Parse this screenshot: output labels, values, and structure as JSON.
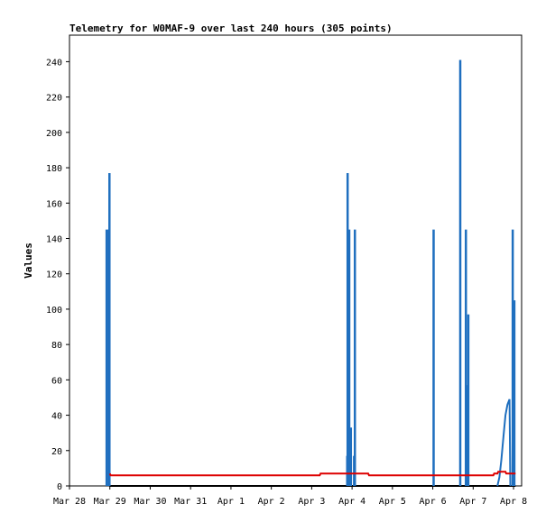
{
  "chart_data": {
    "type": "line",
    "title": "Telemetry for W0MAF-9 over last 240 hours (305 points)",
    "ylabel": "Values",
    "xlabel": "",
    "x_categories": [
      "Mar 28",
      "Mar 29",
      "Mar 30",
      "Mar 31",
      "Apr 1",
      "Apr 2",
      "Apr 3",
      "Apr 4",
      "Apr 5",
      "Apr 6",
      "Apr 7",
      "Apr 8"
    ],
    "xlim_days": [
      0,
      11.2
    ],
    "ylim": [
      0,
      255
    ],
    "yticks": [
      0,
      20,
      40,
      60,
      80,
      100,
      120,
      140,
      160,
      180,
      200,
      220,
      240
    ],
    "grid": false,
    "colors": {
      "spikes": "#1f6fbf",
      "baseline": "#dd0000",
      "zero": "#000000"
    },
    "series": [
      {
        "style": "spikes",
        "points": [
          [
            0.92,
            145
          ],
          [
            0.97,
            145
          ],
          [
            0.99,
            177
          ],
          [
            1.02,
            0
          ],
          [
            6.88,
            17
          ],
          [
            6.89,
            177
          ],
          [
            6.93,
            145
          ],
          [
            6.97,
            33
          ],
          [
            6.99,
            0
          ],
          [
            7.05,
            17
          ],
          [
            7.07,
            145
          ],
          [
            7.09,
            0
          ],
          [
            9.02,
            145
          ],
          [
            9.04,
            0
          ],
          [
            9.68,
            241
          ],
          [
            9.7,
            0
          ],
          [
            9.82,
            145
          ],
          [
            9.84,
            57
          ],
          [
            9.86,
            0
          ],
          [
            9.88,
            97
          ],
          [
            9.9,
            0
          ],
          [
            10.98,
            145
          ],
          [
            11.0,
            65
          ],
          [
            11.02,
            105
          ],
          [
            11.04,
            0
          ]
        ]
      },
      {
        "style": "line",
        "points": [
          [
            10.6,
            0
          ],
          [
            10.65,
            5
          ],
          [
            10.7,
            15
          ],
          [
            10.75,
            28
          ],
          [
            10.8,
            40
          ],
          [
            10.85,
            46
          ],
          [
            10.9,
            49
          ],
          [
            10.92,
            0
          ]
        ]
      },
      {
        "style": "line-red",
        "points": [
          [
            1.0,
            7
          ],
          [
            1.02,
            6
          ],
          [
            6.2,
            6
          ],
          [
            6.22,
            7
          ],
          [
            7.4,
            7
          ],
          [
            7.42,
            6
          ],
          [
            9.0,
            6
          ],
          [
            9.1,
            6
          ],
          [
            10.5,
            6
          ],
          [
            10.52,
            7
          ],
          [
            10.6,
            7
          ],
          [
            10.62,
            8
          ],
          [
            10.8,
            8
          ],
          [
            10.82,
            7
          ],
          [
            11.05,
            7
          ]
        ]
      }
    ]
  }
}
